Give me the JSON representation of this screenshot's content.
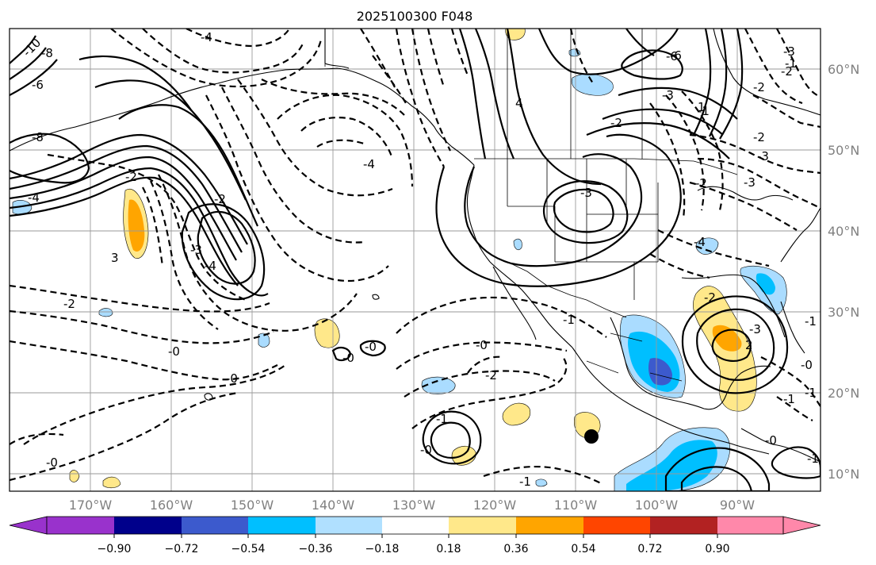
{
  "title": "2025100300 F048",
  "map": {
    "lat_labels": [
      "60°N",
      "50°N",
      "40°N",
      "30°N",
      "20°N",
      "10°N"
    ],
    "lon_labels": [
      "170°W",
      "160°W",
      "150°W",
      "140°W",
      "130°W",
      "120°W",
      "110°W",
      "100°W",
      "90°W"
    ],
    "contour_labels": [
      "-10",
      "-8",
      "-6",
      "-4",
      "-8",
      "-4",
      "-2",
      "3",
      "-2",
      "-3",
      "-4",
      "-2",
      "-4",
      "-6",
      "-3",
      "4",
      "-2",
      "-3",
      "-1",
      "-2",
      "-0",
      "-0",
      "-0",
      "-0",
      "-0",
      "-1",
      "-0",
      "-1",
      "-3",
      "-2",
      "-1",
      "-2",
      "-6",
      "-3",
      "-4",
      "-2",
      "-3",
      "2",
      "-1",
      "-2",
      "-3",
      "-2",
      "-0",
      "-1",
      "1",
      "-1",
      "-0",
      "-1",
      "-0",
      "-1"
    ],
    "storm_marker": "black-dot"
  },
  "colorbar": {
    "tick_labels": [
      "−0.90",
      "−0.72",
      "−0.54",
      "−0.36",
      "−0.18",
      "0.18",
      "0.36",
      "0.54",
      "0.72",
      "0.90"
    ],
    "colors": [
      "#9932cc",
      "#00008b",
      "#3c5acd",
      "#00bfff",
      "#b0e0ff",
      "#ffffff",
      "#ffe88a",
      "#ffa500",
      "#ff4500",
      "#b22222",
      "#ff88aa"
    ]
  },
  "colors": {
    "shade_light_blue": "#aadcff",
    "shade_blue": "#00bfff",
    "shade_dark_blue": "#3c5acd",
    "shade_yellow": "#ffe88a",
    "shade_orange": "#ffa500"
  }
}
